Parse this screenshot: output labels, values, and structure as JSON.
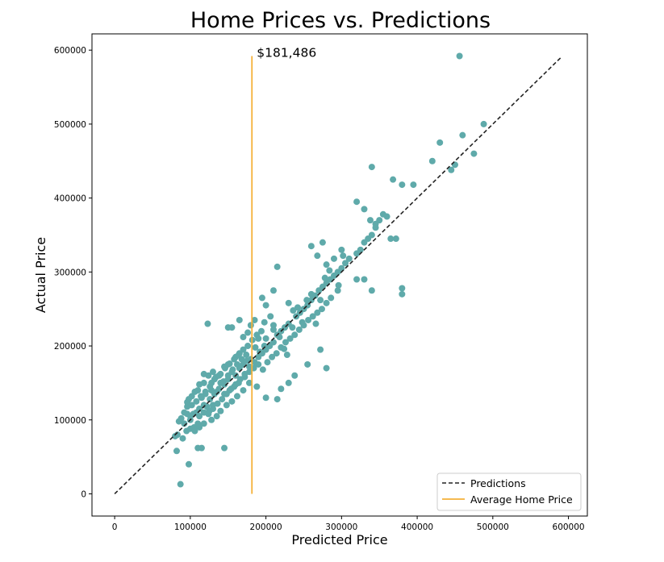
{
  "chart_data": {
    "type": "scatter",
    "title": "Home Prices vs. Predictions",
    "xlabel": "Predicted Price",
    "ylabel": "Actual Price",
    "xlim": [
      -30000,
      625000
    ],
    "ylim": [
      -30000,
      622000
    ],
    "xticks": [
      0,
      100000,
      200000,
      300000,
      400000,
      500000,
      600000
    ],
    "yticks": [
      0,
      100000,
      200000,
      300000,
      400000,
      500000,
      600000
    ],
    "xtick_labels": [
      "0",
      "100000",
      "200000",
      "300000",
      "400000",
      "500000",
      "600000"
    ],
    "ytick_labels": [
      "0",
      "100000",
      "200000",
      "300000",
      "400000",
      "500000",
      "600000"
    ],
    "grid": false,
    "legend_position": "bottom-right",
    "colors": {
      "points": "#5faaaa",
      "predictions": "#222222",
      "average": "#f5b038"
    },
    "average_line": {
      "x": 181486,
      "y_range": [
        0,
        592000
      ],
      "label": "$181,486"
    },
    "predictions_line": {
      "x": [
        0,
        590000
      ],
      "y": [
        0,
        590000
      ]
    },
    "legend": [
      "Predictions",
      "Average Home Price"
    ],
    "points": [
      [
        87000,
        13000
      ],
      [
        98000,
        40000
      ],
      [
        82000,
        58000
      ],
      [
        110000,
        62000
      ],
      [
        115000,
        62000
      ],
      [
        145000,
        62000
      ],
      [
        83000,
        80000
      ],
      [
        90000,
        75000
      ],
      [
        80000,
        78000
      ],
      [
        95000,
        85000
      ],
      [
        100000,
        88000
      ],
      [
        105000,
        90000
      ],
      [
        85000,
        98000
      ],
      [
        92000,
        95000
      ],
      [
        110000,
        95000
      ],
      [
        100000,
        105000
      ],
      [
        96000,
        108000
      ],
      [
        108000,
        110000
      ],
      [
        112000,
        115000
      ],
      [
        118000,
        120000
      ],
      [
        122000,
        118000
      ],
      [
        125000,
        112000
      ],
      [
        130000,
        120000
      ],
      [
        102000,
        120000
      ],
      [
        115000,
        130000
      ],
      [
        120000,
        135000
      ],
      [
        128000,
        140000
      ],
      [
        135000,
        138000
      ],
      [
        110000,
        140000
      ],
      [
        126000,
        145000
      ],
      [
        140000,
        150000
      ],
      [
        145000,
        148000
      ],
      [
        150000,
        155000
      ],
      [
        132000,
        155000
      ],
      [
        138000,
        160000
      ],
      [
        118000,
        162000
      ],
      [
        130000,
        165000
      ],
      [
        155000,
        165000
      ],
      [
        160000,
        160000
      ],
      [
        165000,
        170000
      ],
      [
        145000,
        172000
      ],
      [
        150000,
        175000
      ],
      [
        170000,
        175000
      ],
      [
        175000,
        180000
      ],
      [
        180000,
        182000
      ],
      [
        185000,
        178000
      ],
      [
        190000,
        185000
      ],
      [
        160000,
        185000
      ],
      [
        165000,
        190000
      ],
      [
        195000,
        190000
      ],
      [
        200000,
        195000
      ],
      [
        205000,
        200000
      ],
      [
        210000,
        205000
      ],
      [
        200000,
        210000
      ],
      [
        190000,
        210000
      ],
      [
        215000,
        215000
      ],
      [
        220000,
        220000
      ],
      [
        225000,
        225000
      ],
      [
        210000,
        228000
      ],
      [
        230000,
        230000
      ],
      [
        235000,
        225000
      ],
      [
        240000,
        240000
      ],
      [
        245000,
        245000
      ],
      [
        250000,
        250000
      ],
      [
        255000,
        255000
      ],
      [
        260000,
        262000
      ],
      [
        265000,
        268000
      ],
      [
        270000,
        275000
      ],
      [
        275000,
        280000
      ],
      [
        280000,
        285000
      ],
      [
        285000,
        290000
      ],
      [
        290000,
        295000
      ],
      [
        295000,
        300000
      ],
      [
        300000,
        305000
      ],
      [
        305000,
        312000
      ],
      [
        310000,
        318000
      ],
      [
        320000,
        325000
      ],
      [
        325000,
        330000
      ],
      [
        330000,
        340000
      ],
      [
        335000,
        345000
      ],
      [
        340000,
        350000
      ],
      [
        345000,
        360000
      ],
      [
        350000,
        370000
      ],
      [
        360000,
        375000
      ],
      [
        123000,
        230000
      ],
      [
        150000,
        225000
      ],
      [
        155000,
        225000
      ],
      [
        165000,
        235000
      ],
      [
        185000,
        235000
      ],
      [
        200000,
        255000
      ],
      [
        210000,
        275000
      ],
      [
        215000,
        307000
      ],
      [
        195000,
        265000
      ],
      [
        230000,
        258000
      ],
      [
        260000,
        335000
      ],
      [
        268000,
        322000
      ],
      [
        275000,
        340000
      ],
      [
        280000,
        310000
      ],
      [
        300000,
        330000
      ],
      [
        320000,
        395000
      ],
      [
        330000,
        385000
      ],
      [
        338000,
        370000
      ],
      [
        345000,
        365000
      ],
      [
        355000,
        378000
      ],
      [
        340000,
        442000
      ],
      [
        368000,
        425000
      ],
      [
        380000,
        418000
      ],
      [
        395000,
        418000
      ],
      [
        420000,
        450000
      ],
      [
        430000,
        475000
      ],
      [
        445000,
        438000
      ],
      [
        450000,
        445000
      ],
      [
        460000,
        485000
      ],
      [
        475000,
        460000
      ],
      [
        488000,
        500000
      ],
      [
        456000,
        592000
      ],
      [
        365000,
        345000
      ],
      [
        372000,
        345000
      ],
      [
        380000,
        270000
      ],
      [
        380000,
        278000
      ],
      [
        330000,
        290000
      ],
      [
        340000,
        275000
      ],
      [
        320000,
        290000
      ],
      [
        295000,
        275000
      ],
      [
        280000,
        170000
      ],
      [
        272000,
        195000
      ],
      [
        255000,
        175000
      ],
      [
        238000,
        160000
      ],
      [
        230000,
        150000
      ],
      [
        220000,
        142000
      ],
      [
        215000,
        128000
      ],
      [
        200000,
        130000
      ],
      [
        188000,
        145000
      ],
      [
        178000,
        150000
      ],
      [
        170000,
        140000
      ],
      [
        162000,
        132000
      ],
      [
        155000,
        125000
      ],
      [
        148000,
        120000
      ],
      [
        140000,
        112000
      ],
      [
        135000,
        105000
      ],
      [
        128000,
        100000
      ],
      [
        118000,
        95000
      ],
      [
        112000,
        90000
      ],
      [
        106000,
        85000
      ],
      [
        145000,
        135000
      ],
      [
        152000,
        140000
      ],
      [
        158000,
        145000
      ],
      [
        164000,
        150000
      ],
      [
        172000,
        158000
      ],
      [
        178000,
        165000
      ],
      [
        184000,
        170000
      ],
      [
        190000,
        175000
      ],
      [
        196000,
        168000
      ],
      [
        202000,
        178000
      ],
      [
        208000,
        185000
      ],
      [
        214000,
        190000
      ],
      [
        220000,
        198000
      ],
      [
        226000,
        205000
      ],
      [
        232000,
        210000
      ],
      [
        238000,
        215000
      ],
      [
        244000,
        222000
      ],
      [
        250000,
        228000
      ],
      [
        256000,
        235000
      ],
      [
        262000,
        240000
      ],
      [
        268000,
        245000
      ],
      [
        274000,
        250000
      ],
      [
        280000,
        258000
      ],
      [
        286000,
        265000
      ],
      [
        128000,
        150000
      ],
      [
        134000,
        158000
      ],
      [
        140000,
        162000
      ],
      [
        146000,
        170000
      ],
      [
        152000,
        176000
      ],
      [
        158000,
        182000
      ],
      [
        164000,
        188000
      ],
      [
        170000,
        195000
      ],
      [
        176000,
        200000
      ],
      [
        182000,
        208000
      ],
      [
        188000,
        215000
      ],
      [
        194000,
        220000
      ],
      [
        108000,
        125000
      ],
      [
        114000,
        132000
      ],
      [
        120000,
        138000
      ],
      [
        126000,
        128000
      ],
      [
        132000,
        135000
      ],
      [
        138000,
        142000
      ],
      [
        144000,
        152000
      ],
      [
        150000,
        160000
      ],
      [
        156000,
        168000
      ],
      [
        162000,
        175000
      ],
      [
        168000,
        182000
      ],
      [
        174000,
        188000
      ],
      [
        112000,
        105000
      ],
      [
        118000,
        110000
      ],
      [
        124000,
        108000
      ],
      [
        130000,
        115000
      ],
      [
        136000,
        122000
      ],
      [
        142000,
        128000
      ],
      [
        148000,
        135000
      ],
      [
        154000,
        142000
      ],
      [
        160000,
        148000
      ],
      [
        166000,
        155000
      ],
      [
        172000,
        162000
      ],
      [
        178000,
        172000
      ],
      [
        236000,
        248000
      ],
      [
        242000,
        252000
      ],
      [
        248000,
        232000
      ],
      [
        254000,
        262000
      ],
      [
        260000,
        270000
      ],
      [
        266000,
        230000
      ],
      [
        272000,
        262000
      ],
      [
        278000,
        292000
      ],
      [
        284000,
        302000
      ],
      [
        290000,
        318000
      ],
      [
        296000,
        282000
      ],
      [
        302000,
        322000
      ],
      [
        100000,
        100000
      ],
      [
        104000,
        108000
      ],
      [
        96000,
        118000
      ],
      [
        92000,
        110000
      ],
      [
        88000,
        102000
      ],
      [
        98000,
        128000
      ],
      [
        210000,
        222000
      ],
      [
        218000,
        212000
      ],
      [
        224000,
        196000
      ],
      [
        228000,
        188000
      ],
      [
        206000,
        240000
      ],
      [
        198000,
        232000
      ],
      [
        180000,
        228000
      ],
      [
        176000,
        218000
      ],
      [
        170000,
        212000
      ],
      [
        186000,
        198000
      ],
      [
        192000,
        192000
      ],
      [
        198000,
        200000
      ],
      [
        124000,
        160000
      ],
      [
        118000,
        150000
      ],
      [
        112000,
        148000
      ],
      [
        106000,
        138000
      ],
      [
        102000,
        132000
      ],
      [
        96000,
        124000
      ]
    ]
  }
}
